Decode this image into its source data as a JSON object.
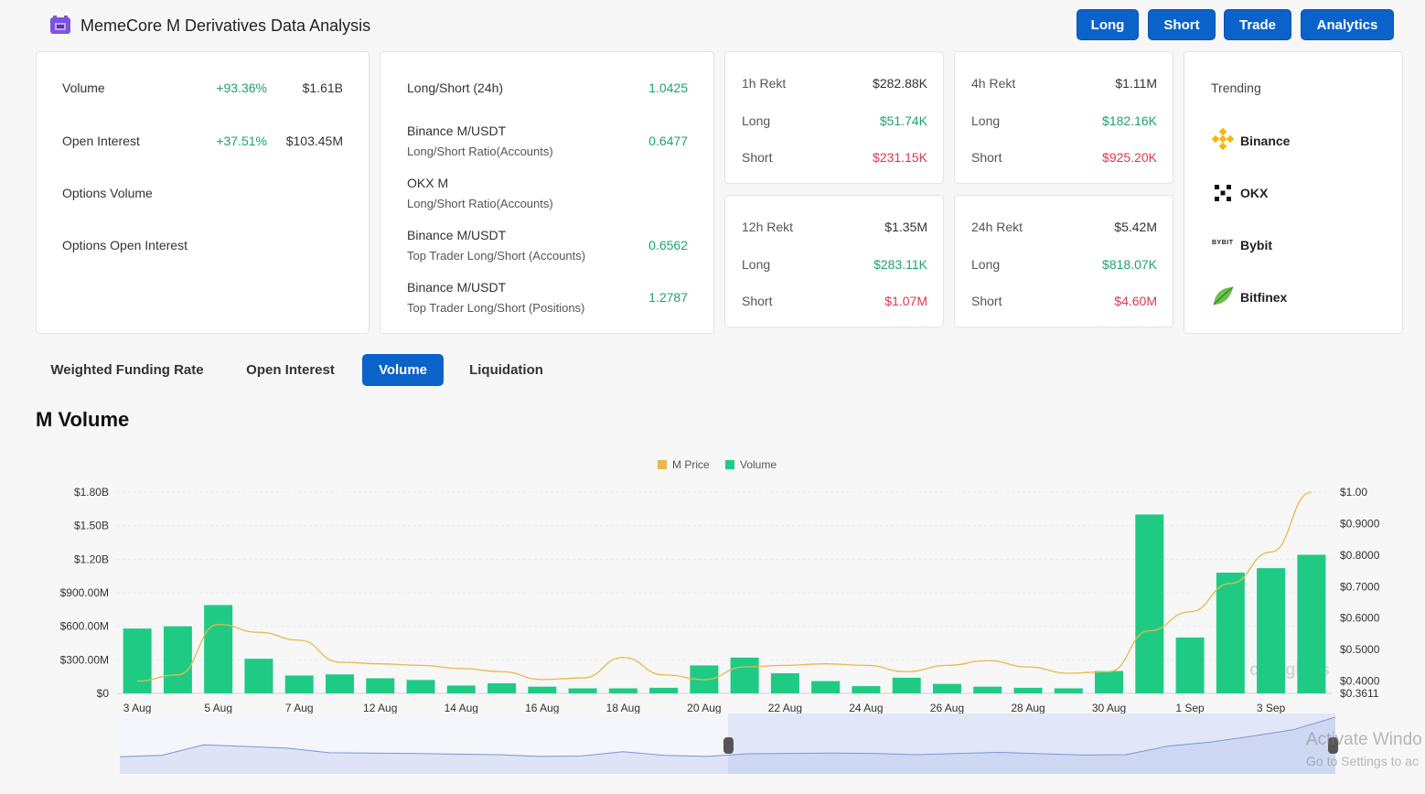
{
  "app": {
    "title": "MemeCore M Derivatives Data Analysis"
  },
  "nav": {
    "long": "Long",
    "short": "Short",
    "trade": "Trade",
    "analytics": "Analytics"
  },
  "summary": {
    "volume": {
      "label": "Volume",
      "change": "+93.36%",
      "value": "$1.61B"
    },
    "open_interest": {
      "label": "Open Interest",
      "change": "+37.51%",
      "value": "$103.45M"
    },
    "options_volume": {
      "label": "Options Volume"
    },
    "options_open_interest": {
      "label": "Options Open Interest"
    }
  },
  "ratios": {
    "long_short_24h": {
      "label": "Long/Short (24h)",
      "value": "1.0425"
    },
    "rows": [
      {
        "title": "Binance M/USDT",
        "subtitle": "Long/Short Ratio(Accounts)",
        "value": "0.6477"
      },
      {
        "title": "OKX M",
        "subtitle": "Long/Short Ratio(Accounts)",
        "value": ""
      },
      {
        "title": "Binance M/USDT",
        "subtitle": "Top Trader Long/Short (Accounts)",
        "value": "0.6562"
      },
      {
        "title": "Binance M/USDT",
        "subtitle": "Top Trader Long/Short (Positions)",
        "value": "1.2787"
      }
    ]
  },
  "rekt": [
    {
      "label": "1h Rekt",
      "total": "$282.88K",
      "long_label": "Long",
      "long": "$51.74K",
      "short_label": "Short",
      "short": "$231.15K"
    },
    {
      "label": "4h Rekt",
      "total": "$1.11M",
      "long_label": "Long",
      "long": "$182.16K",
      "short_label": "Short",
      "short": "$925.20K"
    },
    {
      "label": "12h Rekt",
      "total": "$1.35M",
      "long_label": "Long",
      "long": "$283.11K",
      "short_label": "Short",
      "short": "$1.07M"
    },
    {
      "label": "24h Rekt",
      "total": "$5.42M",
      "long_label": "Long",
      "long": "$818.07K",
      "short_label": "Short",
      "short": "$4.60M"
    }
  ],
  "trending": {
    "title": "Trending",
    "items": [
      "Binance",
      "OKX",
      "Bybit",
      "Bitfinex"
    ],
    "bybit_logo_text": "BYBIT"
  },
  "tabs": [
    "Weighted Funding Rate",
    "Open Interest",
    "Volume",
    "Liquidation"
  ],
  "active_tab": "Volume",
  "section_title": "M Volume",
  "colors": {
    "accent": "#0b63c9",
    "price": "#e8b84a",
    "volume": "#1fcb84",
    "green": "#1fa36b",
    "red": "#e0384c"
  },
  "watermark": {
    "brand": "coinglass",
    "activate_line1": "Activate Windo",
    "activate_line2": "Go to Settings to ac"
  },
  "chart_data": {
    "type": "bar",
    "legend": [
      "M Price",
      "Volume"
    ],
    "legend_position": "top-center",
    "x_tick_labels": [
      "3 Aug",
      "5 Aug",
      "7 Aug",
      "12 Aug",
      "14 Aug",
      "16 Aug",
      "18 Aug",
      "20 Aug",
      "22 Aug",
      "24 Aug",
      "26 Aug",
      "28 Aug",
      "30 Aug",
      "1 Sep",
      "3 Sep"
    ],
    "y_left_ticks": [
      "$0",
      "$300.00M",
      "$600.00M",
      "$900.00M",
      "$1.20B",
      "$1.50B",
      "$1.80B"
    ],
    "y_right_ticks": [
      "$0.3611",
      "$0.4000",
      "$0.5000",
      "$0.6000",
      "$0.7000",
      "$0.8000",
      "$0.9000",
      "$1.00"
    ],
    "y_left_range": [
      0,
      1800000000
    ],
    "y_right_range": [
      0.3611,
      1.0
    ],
    "grid": true,
    "series": [
      {
        "name": "Volume",
        "axis": "left",
        "values": [
          580000000,
          600000000,
          790000000,
          310000000,
          160000000,
          170000000,
          135000000,
          120000000,
          70000000,
          90000000,
          60000000,
          45000000,
          45000000,
          50000000,
          250000000,
          320000000,
          180000000,
          110000000,
          65000000,
          140000000,
          85000000,
          60000000,
          50000000,
          45000000,
          200000000,
          1600000000,
          500000000,
          1080000000,
          1120000000,
          1240000000
        ]
      },
      {
        "name": "M Price",
        "axis": "right",
        "values": [
          0.4,
          0.42,
          0.58,
          0.555,
          0.53,
          0.46,
          0.455,
          0.45,
          0.44,
          0.43,
          0.405,
          0.41,
          0.475,
          0.42,
          0.405,
          0.445,
          0.45,
          0.455,
          0.45,
          0.43,
          0.45,
          0.465,
          0.445,
          0.425,
          0.43,
          0.56,
          0.62,
          0.71,
          0.81,
          1.0
        ]
      }
    ]
  }
}
